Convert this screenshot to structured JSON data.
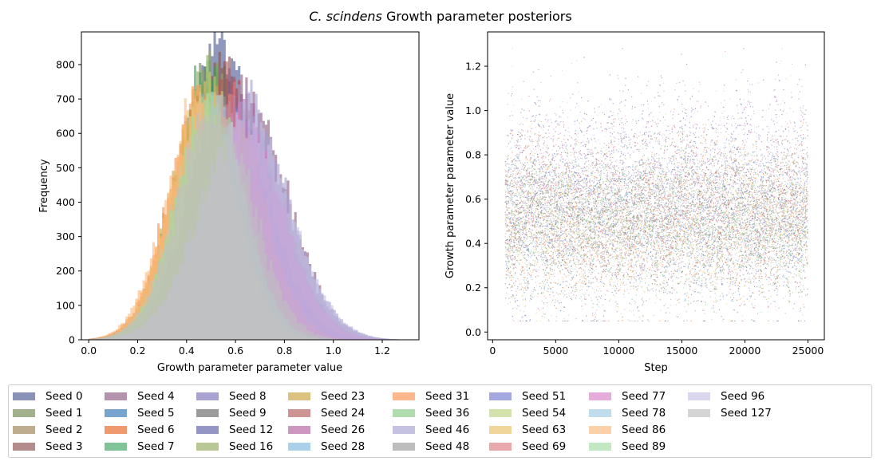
{
  "figure": {
    "title_italic": "C. scindens",
    "title_rest": " Growth parameter posteriors"
  },
  "left_panel": {
    "xlabel": "Growth parameter parameter value",
    "ylabel": "Frequency",
    "xticks": [
      "0.0",
      "0.2",
      "0.4",
      "0.6",
      "0.8",
      "1.0",
      "1.2"
    ],
    "yticks": [
      "0",
      "100",
      "200",
      "300",
      "400",
      "500",
      "600",
      "700",
      "800"
    ]
  },
  "right_panel": {
    "xlabel": "Step",
    "ylabel": "Growth parameter parameter value",
    "xticks": [
      "0",
      "5000",
      "10000",
      "15000",
      "20000",
      "25000"
    ],
    "yticks": [
      "0.0",
      "0.2",
      "0.4",
      "0.6",
      "0.8",
      "1.0",
      "1.2"
    ]
  },
  "legend": {
    "entries": [
      {
        "label": "Seed 0",
        "color": "#4c5891"
      },
      {
        "label": "Seed 1",
        "color": "#6f8550"
      },
      {
        "label": "Seed 2",
        "color": "#9d8150"
      },
      {
        "label": "Seed 3",
        "color": "#8a4f4f"
      },
      {
        "label": "Seed 4",
        "color": "#8c5a80"
      },
      {
        "label": "Seed 5",
        "color": "#2e75b6"
      },
      {
        "label": "Seed 6",
        "color": "#e86221"
      },
      {
        "label": "Seed 7",
        "color": "#3aa35e"
      },
      {
        "label": "Seed 8",
        "color": "#7a72b8"
      },
      {
        "label": "Seed 9",
        "color": "#666666"
      },
      {
        "label": "Seed 12",
        "color": "#5a5aa6"
      },
      {
        "label": "Seed 16",
        "color": "#92a95c"
      },
      {
        "label": "Seed 23",
        "color": "#c9a23e"
      },
      {
        "label": "Seed 24",
        "color": "#b35a5a"
      },
      {
        "label": "Seed 26",
        "color": "#b0609e"
      },
      {
        "label": "Seed 28",
        "color": "#7fb5df"
      },
      {
        "label": "Seed 31",
        "color": "#fb9150"
      },
      {
        "label": "Seed 36",
        "color": "#85ca85"
      },
      {
        "label": "Seed 46",
        "color": "#a69fd0"
      },
      {
        "label": "Seed 48",
        "color": "#999999"
      },
      {
        "label": "Seed 51",
        "color": "#7579cf"
      },
      {
        "label": "Seed 54",
        "color": "#bcd27d"
      },
      {
        "label": "Seed 63",
        "color": "#e8c064"
      },
      {
        "label": "Seed 69",
        "color": "#dd7b80"
      },
      {
        "label": "Seed 77",
        "color": "#d77fc6"
      },
      {
        "label": "Seed 78",
        "color": "#9ccbe3"
      },
      {
        "label": "Seed 86",
        "color": "#fbb97d"
      },
      {
        "label": "Seed 89",
        "color": "#9fdba2"
      },
      {
        "label": "Seed 96",
        "color": "#c4c0e3"
      },
      {
        "label": "Seed 127",
        "color": "#bfbfbf"
      }
    ]
  },
  "chart_data": [
    {
      "type": "histogram",
      "title": "",
      "xlabel": "Growth parameter parameter value",
      "ylabel": "Frequency",
      "xlim": [
        -0.03,
        1.35
      ],
      "ylim": [
        0,
        895
      ],
      "grid": false,
      "series": [
        {
          "name": "Seed 0",
          "peak_x": 0.53,
          "peak_count": 855,
          "sd": 0.15
        },
        {
          "name": "Seed 1",
          "peak_x": 0.5,
          "peak_count": 770,
          "sd": 0.14
        },
        {
          "name": "Seed 2",
          "peak_x": 0.48,
          "peak_count": 720,
          "sd": 0.14
        },
        {
          "name": "Seed 3",
          "peak_x": 0.55,
          "peak_count": 800,
          "sd": 0.14
        },
        {
          "name": "Seed 4",
          "peak_x": 0.62,
          "peak_count": 730,
          "sd": 0.18
        },
        {
          "name": "Seed 5",
          "peak_x": 0.5,
          "peak_count": 690,
          "sd": 0.15
        },
        {
          "name": "Seed 6",
          "peak_x": 0.49,
          "peak_count": 700,
          "sd": 0.14
        },
        {
          "name": "Seed 7",
          "peak_x": 0.5,
          "peak_count": 790,
          "sd": 0.13
        },
        {
          "name": "Seed 8",
          "peak_x": 0.6,
          "peak_count": 640,
          "sd": 0.18
        },
        {
          "name": "Seed 9",
          "peak_x": 0.51,
          "peak_count": 700,
          "sd": 0.15
        },
        {
          "name": "Seed 12",
          "peak_x": 0.58,
          "peak_count": 650,
          "sd": 0.17
        },
        {
          "name": "Seed 16",
          "peak_x": 0.5,
          "peak_count": 760,
          "sd": 0.13
        },
        {
          "name": "Seed 23",
          "peak_x": 0.48,
          "peak_count": 720,
          "sd": 0.14
        },
        {
          "name": "Seed 24",
          "peak_x": 0.56,
          "peak_count": 760,
          "sd": 0.15
        },
        {
          "name": "Seed 26",
          "peak_x": 0.62,
          "peak_count": 640,
          "sd": 0.17
        },
        {
          "name": "Seed 28",
          "peak_x": 0.49,
          "peak_count": 680,
          "sd": 0.14
        },
        {
          "name": "Seed 31",
          "peak_x": 0.47,
          "peak_count": 700,
          "sd": 0.14
        },
        {
          "name": "Seed 36",
          "peak_x": 0.5,
          "peak_count": 700,
          "sd": 0.14
        },
        {
          "name": "Seed 46",
          "peak_x": 0.63,
          "peak_count": 700,
          "sd": 0.18
        },
        {
          "name": "Seed 48",
          "peak_x": 0.52,
          "peak_count": 690,
          "sd": 0.15
        },
        {
          "name": "Seed 51",
          "peak_x": 0.57,
          "peak_count": 640,
          "sd": 0.17
        },
        {
          "name": "Seed 54",
          "peak_x": 0.5,
          "peak_count": 720,
          "sd": 0.13
        },
        {
          "name": "Seed 63",
          "peak_x": 0.48,
          "peak_count": 700,
          "sd": 0.14
        },
        {
          "name": "Seed 69",
          "peak_x": 0.56,
          "peak_count": 700,
          "sd": 0.15
        },
        {
          "name": "Seed 77",
          "peak_x": 0.62,
          "peak_count": 620,
          "sd": 0.17
        },
        {
          "name": "Seed 78",
          "peak_x": 0.49,
          "peak_count": 680,
          "sd": 0.14
        },
        {
          "name": "Seed 86",
          "peak_x": 0.46,
          "peak_count": 700,
          "sd": 0.14
        },
        {
          "name": "Seed 89",
          "peak_x": 0.5,
          "peak_count": 690,
          "sd": 0.14
        },
        {
          "name": "Seed 96",
          "peak_x": 0.64,
          "peak_count": 640,
          "sd": 0.18
        },
        {
          "name": "Seed 127",
          "peak_x": 0.52,
          "peak_count": 680,
          "sd": 0.15
        }
      ]
    },
    {
      "type": "scatter",
      "title": "",
      "xlabel": "Step",
      "ylabel": "Growth parameter parameter value",
      "xlim": [
        -400,
        26300
      ],
      "ylim": [
        -0.035,
        1.355
      ],
      "grid": false,
      "x_range_observed": [
        1000,
        25000
      ],
      "y_range_observed": [
        0.03,
        1.3
      ],
      "typical_center": 0.55,
      "series_names_ref": "legend.entries"
    }
  ]
}
